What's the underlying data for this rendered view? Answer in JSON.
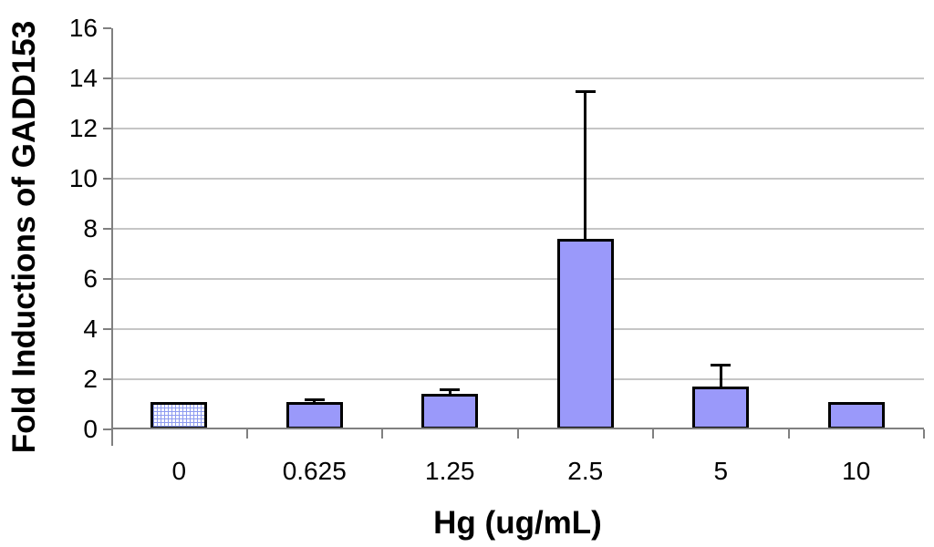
{
  "chart_data": {
    "type": "bar",
    "title": "",
    "xlabel": "Hg (ug/mL)",
    "ylabel": "Fold Inductions of GADD153",
    "categories": [
      "0",
      "0.625",
      "1.25",
      "2.5",
      "5",
      "10"
    ],
    "values": [
      1.0,
      1.0,
      1.3,
      7.5,
      1.6,
      1.0
    ],
    "error_plus": [
      0,
      0.2,
      0.3,
      6.0,
      1.0,
      0
    ],
    "error_tops": [
      null,
      1.2,
      1.6,
      13.5,
      2.6,
      null
    ],
    "ylim": [
      0,
      16
    ],
    "y_ticks": [
      0,
      2,
      4,
      6,
      8,
      10,
      12,
      14,
      16
    ],
    "grid": true,
    "legend_position": "none",
    "bar_fill": "#9a99fa",
    "bar_border": "#000000",
    "pattern_bar_index": 0,
    "pattern_line_color": "#8e9bf0",
    "axis_color": "#808080",
    "gridline_color": "#c6c6c6",
    "background": "#ffffff"
  }
}
